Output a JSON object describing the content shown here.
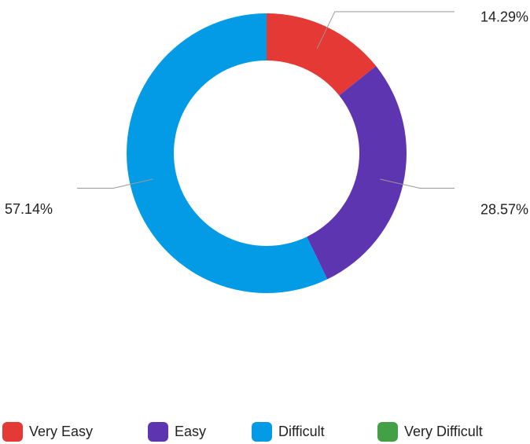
{
  "chart_data": {
    "type": "donut",
    "categories": [
      "Very Easy",
      "Easy",
      "Difficult",
      "Very Difficult"
    ],
    "series": [
      {
        "values": [
          14.29,
          28.57,
          57.14,
          0
        ],
        "value_labels": [
          "14.29%",
          "28.57%",
          "57.14%",
          null
        ],
        "colors": [
          "#e53935",
          "#5e35b1",
          "#039be5",
          "#43a047"
        ]
      }
    ],
    "legend": "bottom"
  }
}
